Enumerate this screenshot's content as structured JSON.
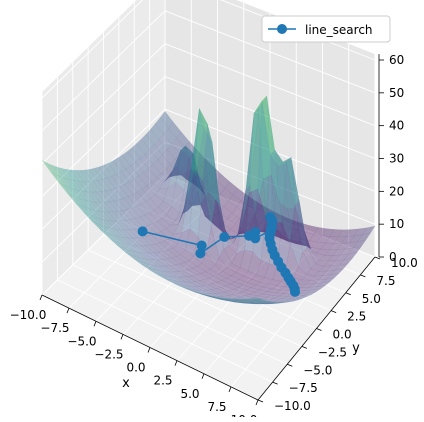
{
  "chart_data": {
    "type": "3d-surface-with-line",
    "xlabel": "x",
    "ylabel": "y",
    "zlabel": "",
    "xlim": [
      -10,
      10
    ],
    "ylim": [
      -10,
      10
    ],
    "zlim": [
      0,
      60
    ],
    "x_ticks": [
      -10,
      -7.5,
      -5,
      -2.5,
      0,
      2.5,
      5,
      7.5,
      10
    ],
    "x_tick_labels": [
      "−10.0",
      "−7.5",
      "−5.0",
      "−2.5",
      "0.0",
      "2.5",
      "5.0",
      "7.5",
      "10.0"
    ],
    "y_ticks": [
      -10,
      -7.5,
      -5,
      -2.5,
      0,
      2.5,
      5,
      7.5,
      10
    ],
    "y_tick_labels": [
      "−10.0",
      "−7.5",
      "−5.0",
      "−2.5",
      "0.0",
      "2.5",
      "5.0",
      "7.5",
      "10.0"
    ],
    "z_ticks": [
      0,
      10,
      20,
      30,
      40,
      50,
      60
    ],
    "z_tick_labels": [
      "0",
      "10",
      "20",
      "30",
      "40",
      "50",
      "60"
    ],
    "grid": true,
    "legend_position": "upper right",
    "surface": {
      "colormap": "viridis",
      "alpha": 0.4,
      "description_peaks": [
        {
          "x": 2,
          "y": 5,
          "height": 55
        },
        {
          "x": -2,
          "y": 2.5,
          "height": 45
        },
        {
          "x": -5,
          "y": 5,
          "height": 20
        },
        {
          "x": 4.5,
          "y": 5,
          "height": 35
        }
      ]
    },
    "series": [
      {
        "name": "line_search",
        "color": "#1f77b4",
        "marker": "circle",
        "points": [
          {
            "x": -6.5,
            "y": 0.3,
            "z": 5.5
          },
          {
            "x": -2.2,
            "y": 2.5,
            "z": 3
          },
          {
            "x": -2.2,
            "y": 2.3,
            "z": 1
          },
          {
            "x": -1.2,
            "y": 4.5,
            "z": 3
          },
          {
            "x": 0,
            "y": 6.5,
            "z": 1
          },
          {
            "x": 0.2,
            "y": 7.2,
            "z": 1
          },
          {
            "x": 0.6,
            "y": 6.5,
            "z": 1
          },
          {
            "x": 1.2,
            "y": 8.1,
            "z": 1
          },
          {
            "x": 1.1,
            "y": 8.4,
            "z": 1.3
          },
          {
            "x": 0.9,
            "y": 8.8,
            "z": 2
          },
          {
            "x": 0.6,
            "y": 9.0,
            "z": 2.4
          },
          {
            "x": 0.8,
            "y": 8.9,
            "z": 1.5
          },
          {
            "x": 1.0,
            "y": 8.5,
            "z": 1.1
          },
          {
            "x": 1.2,
            "y": 8.0,
            "z": 1.2
          },
          {
            "x": 1.4,
            "y": 7.5,
            "z": 1
          },
          {
            "x": 1.6,
            "y": 7.1,
            "z": 1.1
          },
          {
            "x": 2.0,
            "y": 6.6,
            "z": 1
          },
          {
            "x": 2.5,
            "y": 6.0,
            "z": 1
          },
          {
            "x": 3.0,
            "y": 5.5,
            "z": 1
          },
          {
            "x": 3.6,
            "y": 5.0,
            "z": 1
          },
          {
            "x": 4.2,
            "y": 4.5,
            "z": 1
          },
          {
            "x": 4.8,
            "y": 4.1,
            "z": 1
          },
          {
            "x": 5.3,
            "y": 3.7,
            "z": 1
          },
          {
            "x": 5.7,
            "y": 3.4,
            "z": 1
          },
          {
            "x": 6.1,
            "y": 3.1,
            "z": 1
          },
          {
            "x": 6.4,
            "y": 2.8,
            "z": 1
          },
          {
            "x": 6.6,
            "y": 2.5,
            "z": 1
          }
        ]
      }
    ]
  },
  "legend": {
    "label": "line_search"
  }
}
